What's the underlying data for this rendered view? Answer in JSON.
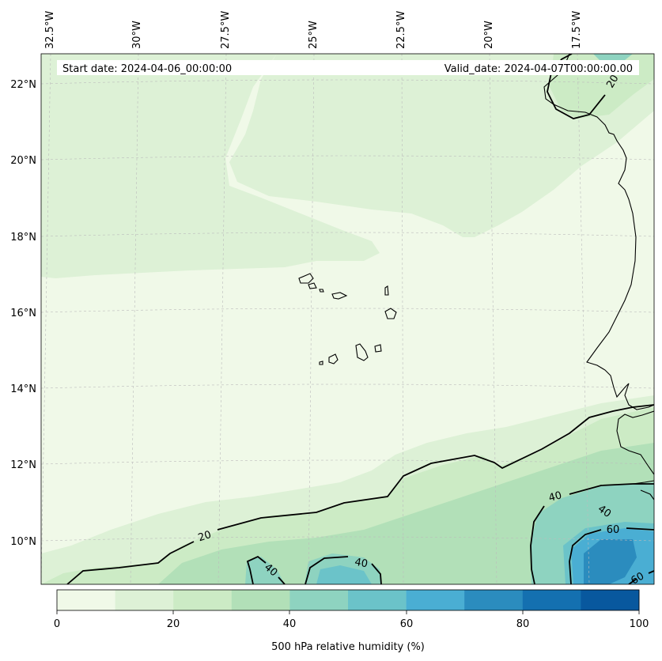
{
  "header": {
    "start_date": "Start date: 2024-04-06_00:00:00",
    "valid_date": "Valid_date: 2024-04-07T00:00:00.00"
  },
  "map": {
    "projection": "conic",
    "gridlines": true,
    "coastline_color": "#000000",
    "gridline_color": "#bcbcbc",
    "longitude_labels": [
      "32.5°W",
      "30°W",
      "27.5°W",
      "25°W",
      "22.5°W",
      "20°W",
      "17.5°W"
    ],
    "latitude_labels": [
      "22°N",
      "20°N",
      "18°N",
      "16°N",
      "14°N",
      "12°N",
      "10°N"
    ],
    "contour_labels": [
      {
        "text": "20"
      },
      {
        "text": "20"
      },
      {
        "text": "40"
      },
      {
        "text": "40"
      },
      {
        "text": "40"
      },
      {
        "text": "40"
      },
      {
        "text": "60"
      },
      {
        "text": "60"
      }
    ]
  },
  "colorbar": {
    "label": "500 hPa relative humidity (%)",
    "ticks": [
      "0",
      "20",
      "40",
      "60",
      "80",
      "100"
    ],
    "range": [
      0,
      100
    ],
    "bins": [
      {
        "from": 0,
        "to": 10,
        "color": "#f0f9e8"
      },
      {
        "from": 10,
        "to": 20,
        "color": "#ddf1d6"
      },
      {
        "from": 20,
        "to": 30,
        "color": "#ccebc5"
      },
      {
        "from": 30,
        "to": 40,
        "color": "#b2e0b8"
      },
      {
        "from": 40,
        "to": 50,
        "color": "#8ed3c0"
      },
      {
        "from": 50,
        "to": 60,
        "color": "#6bc3c9"
      },
      {
        "from": 60,
        "to": 70,
        "color": "#4aaed3"
      },
      {
        "from": 70,
        "to": 80,
        "color": "#2b8cbe"
      },
      {
        "from": 80,
        "to": 90,
        "color": "#1470b0"
      },
      {
        "from": 90,
        "to": 100,
        "color": "#08589e"
      }
    ]
  }
}
